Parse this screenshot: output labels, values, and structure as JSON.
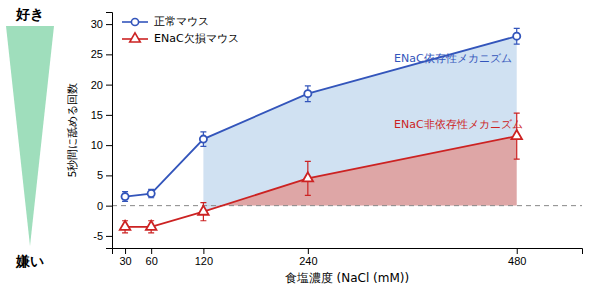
{
  "chart_data": {
    "type": "line",
    "x_label": "食塩濃度 (NaCl (mM))",
    "y_label": "5秒間に舐める回数",
    "x": [
      30,
      60,
      120,
      240,
      480
    ],
    "xlim": [
      15,
      555
    ],
    "xticks": [
      30,
      60,
      120,
      240,
      480
    ],
    "ylim": [
      -7,
      32
    ],
    "yticks": [
      -5,
      0,
      5,
      10,
      15,
      20,
      25,
      30
    ],
    "grid": false,
    "legend": "upper left",
    "series": [
      {
        "name": "正常マウス",
        "color": "#3355bb",
        "marker": "circle",
        "line_style": "solid",
        "values": [
          1.5,
          2.0,
          11.0,
          18.5,
          28.0
        ],
        "errors": [
          0.8,
          0.7,
          1.2,
          1.3,
          1.3
        ]
      },
      {
        "name": "ENaC欠損マウス",
        "color": "#cc2222",
        "marker": "triangle",
        "line_style": "solid",
        "values": [
          -3.5,
          -3.5,
          -1.0,
          4.5,
          11.5
        ],
        "errors": [
          1.0,
          1.0,
          1.5,
          2.8,
          3.8
        ]
      }
    ],
    "shaded": [
      {
        "from": 120,
        "to": 480,
        "lower": "ENaC欠損マウス",
        "upper": "正常マウス",
        "color": "#aac8e8"
      },
      {
        "from": 120,
        "to": 480,
        "lower": 0,
        "upper": "ENaC欠損マウス",
        "color": "#cc7777"
      }
    ],
    "hlines": [
      {
        "y": 0,
        "color": "#888888",
        "line_style": "dashed"
      }
    ],
    "annotations": [
      {
        "text": "ENaC依存性メカニズム",
        "color": "#3355bb"
      },
      {
        "text": "ENaC非依存性メカニズム",
        "color": "#cc2222"
      }
    ],
    "side_scale": {
      "top": "好き",
      "bottom": "嫌い",
      "color": "#8ed8b0"
    }
  }
}
